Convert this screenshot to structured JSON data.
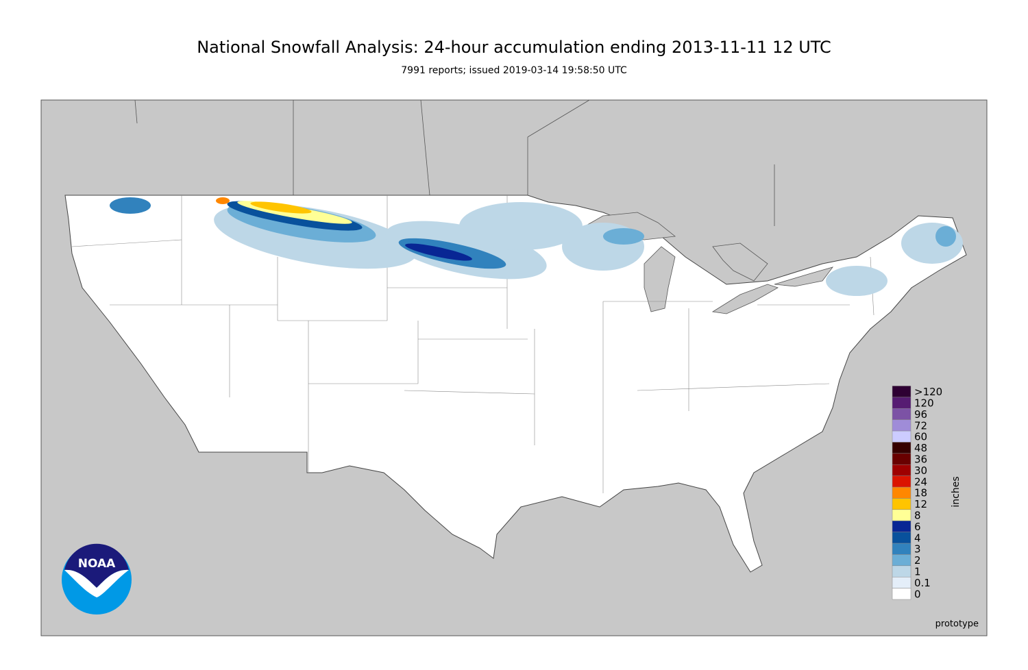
{
  "header": {
    "title": "National Snowfall Analysis: 24-hour accumulation ending 2013-11-11 12 UTC",
    "subtitle": "7991 reports; issued 2019-03-14 19:58:50 UTC"
  },
  "legend": {
    "title": "inches",
    "entries": [
      {
        "label": "0",
        "color": "#ffffff"
      },
      {
        "label": "0.1",
        "color": "#e4eef9"
      },
      {
        "label": "1",
        "color": "#bdd7e7"
      },
      {
        "label": "2",
        "color": "#6baed6"
      },
      {
        "label": "3",
        "color": "#3182bd"
      },
      {
        "label": "4",
        "color": "#08519c"
      },
      {
        "label": "6",
        "color": "#082694"
      },
      {
        "label": "8",
        "color": "#ffff96"
      },
      {
        "label": "12",
        "color": "#ffc400"
      },
      {
        "label": "18",
        "color": "#ff8700"
      },
      {
        "label": "24",
        "color": "#db1400"
      },
      {
        "label": "30",
        "color": "#9e0000"
      },
      {
        "label": "36",
        "color": "#690000"
      },
      {
        "label": "48",
        "color": "#360000"
      },
      {
        "label": "60",
        "color": "#ccccff"
      },
      {
        "label": "72",
        "color": "#9f8cd8"
      },
      {
        "label": "96",
        "color": "#7c52a5"
      },
      {
        "label": "120",
        "color": "#561c72"
      },
      {
        "label": ">120",
        "color": "#2e0033"
      }
    ]
  },
  "logo": {
    "text": "NOAA"
  },
  "footer": {
    "note": "prototype"
  }
}
